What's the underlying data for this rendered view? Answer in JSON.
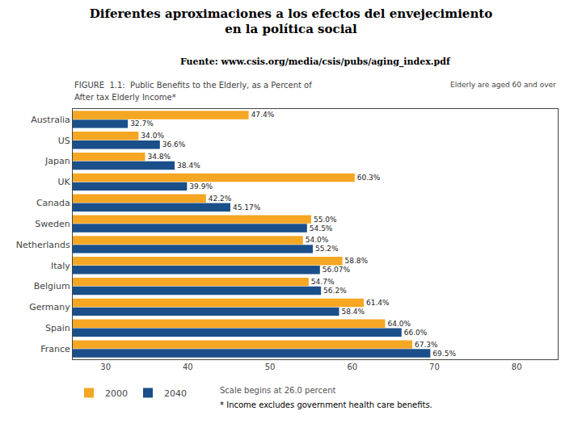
{
  "chart_data": {
    "type": "bar",
    "orientation": "horizontal",
    "title": [
      "Diferentes aproximaciones a los efectos del envejecimiento",
      "en la política social"
    ],
    "subtitle": "Fuente: www.csis.org/media/csis/pubs/aging_index.pdf",
    "annotations": [
      "FIGURE  1.1:  Public Benefits to the Elderly, as a Percent of",
      "After tax Elderly Income*",
      "Elderly are aged 60 and over",
      "Scale begins at 26.0 percent",
      "* Income excludes government health care benefits."
    ],
    "categories": [
      "Australia",
      "US",
      "Japan",
      "UK",
      "Canada",
      "Sweden",
      "Netherlands",
      "Italy",
      "Belgium",
      "Germany",
      "Spain",
      "France"
    ],
    "series": [
      {
        "name": "2000",
        "color": "#F5A623",
        "values": [
          47.4,
          34.0,
          34.8,
          60.3,
          42.2,
          55.0,
          54.0,
          58.8,
          54.7,
          61.4,
          64.0,
          67.3
        ],
        "value_labels": [
          "47.4%",
          "34.0%",
          "34.8%",
          "60.3%",
          "42.2%",
          "55.0%",
          "54.0%",
          "58.8%",
          "54.7%",
          "61.4%",
          "64.0%",
          "67.3%"
        ]
      },
      {
        "name": "2040",
        "color": "#1B4F8A",
        "values": [
          32.7,
          36.6,
          38.4,
          39.9,
          45.17,
          54.5,
          55.2,
          56.07,
          56.2,
          58.4,
          66.0,
          69.5
        ],
        "value_labels": [
          "32.7%",
          "36.6%",
          "38.4%",
          "39.9%",
          "45.17%",
          "54.5%",
          "55.2%",
          "56.07%",
          "56.2%",
          "58.4%",
          "66.0%",
          "69.5%"
        ]
      }
    ],
    "xlim": [
      26.0,
      85
    ],
    "xticks": [
      30,
      40,
      50,
      60,
      70,
      80
    ],
    "grid": false,
    "legend": "lower left",
    "data_labels": true
  }
}
